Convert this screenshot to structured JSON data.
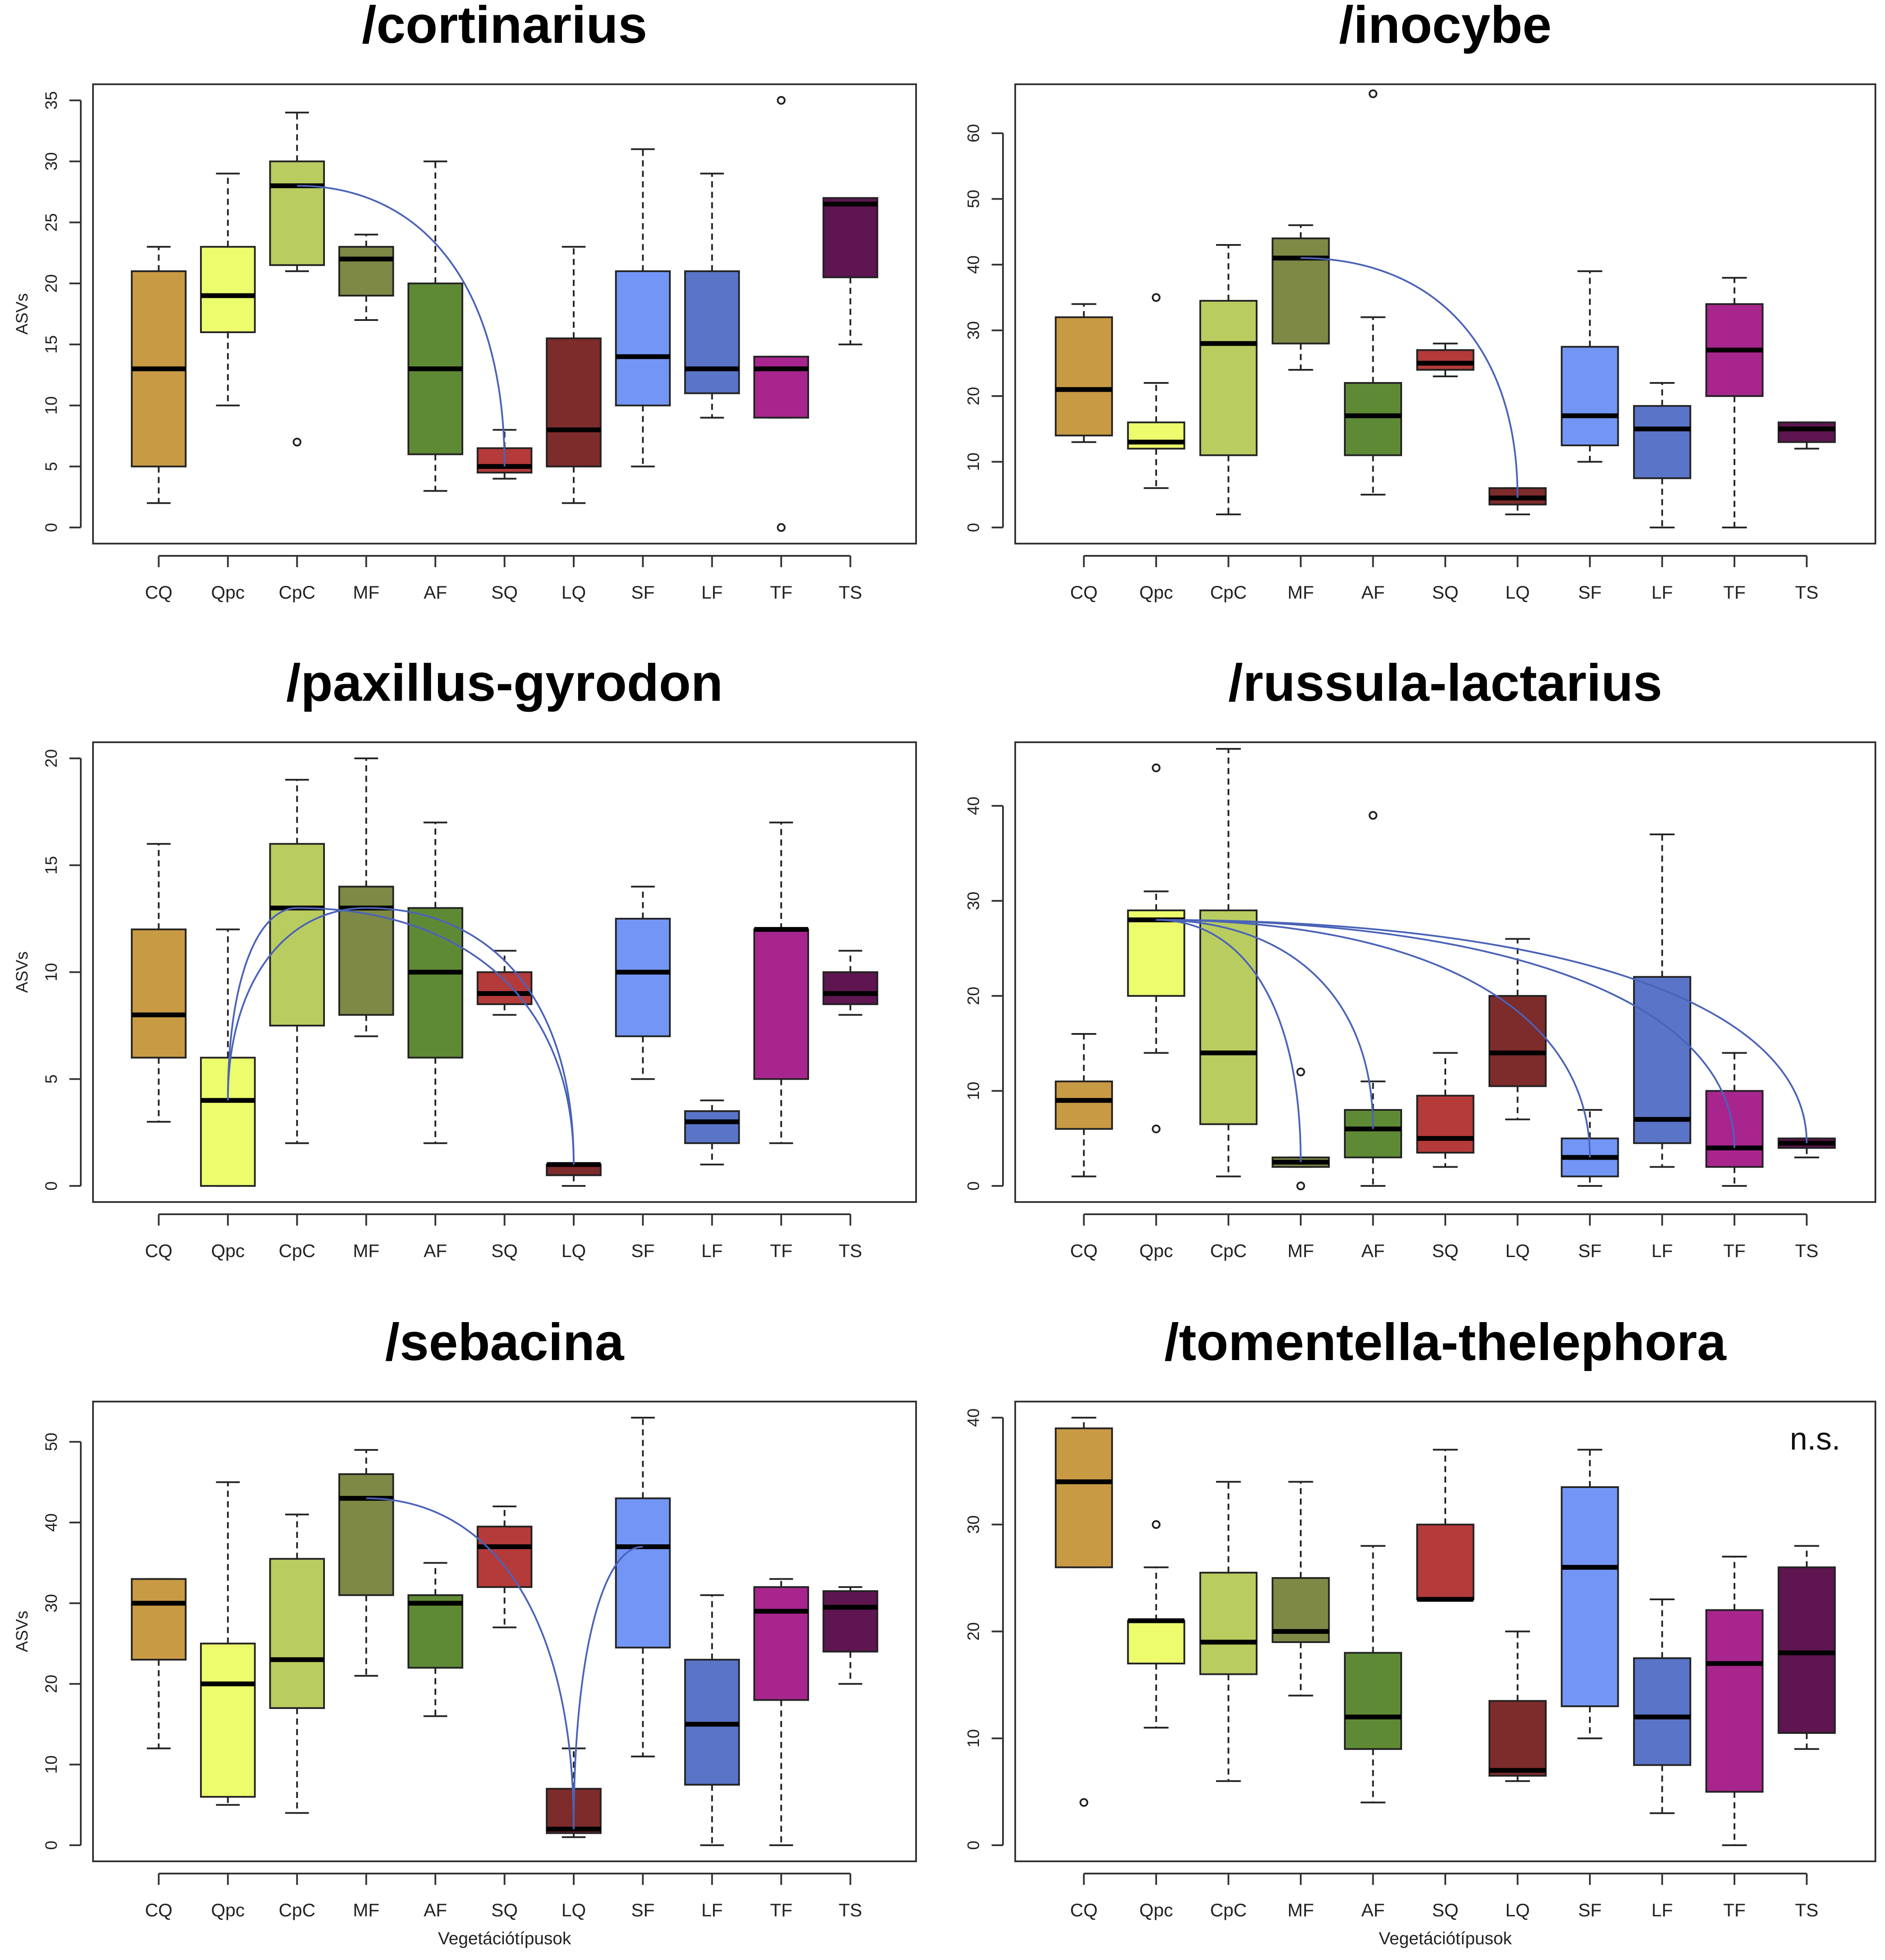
{
  "figure": {
    "categories": [
      "CQ",
      "Qpc",
      "CpC",
      "MF",
      "AF",
      "SQ",
      "LQ",
      "SF",
      "LF",
      "TF",
      "TS"
    ]
  },
  "colors": [
    "#c99a44",
    "#ecfc6c",
    "#b9cc5f",
    "#7e8945",
    "#5f8a35",
    "#b53a3a",
    "#7d2b2b",
    "#7395f5",
    "#5a74c8",
    "#a8258e",
    "#5e1550"
  ],
  "chart_data": [
    {
      "type": "box",
      "title": "/cortinarius",
      "ylabel": "ASVs",
      "xlabel": "",
      "ylim": [
        0,
        35
      ],
      "ticks": [
        0,
        5,
        10,
        15,
        20,
        25,
        30,
        35
      ],
      "boxes": [
        {
          "min": 2,
          "q1": 5,
          "median": 13,
          "q3": 21,
          "max": 23,
          "outliers": []
        },
        {
          "min": 10,
          "q1": 16,
          "median": 19,
          "q3": 23,
          "max": 29,
          "outliers": []
        },
        {
          "min": 21,
          "q1": 21.5,
          "median": 28,
          "q3": 30,
          "max": 34,
          "outliers": [
            7
          ]
        },
        {
          "min": 17,
          "q1": 19,
          "median": 22,
          "q3": 23,
          "max": 24,
          "outliers": []
        },
        {
          "min": 3,
          "q1": 6,
          "median": 13,
          "q3": 20,
          "max": 30,
          "outliers": []
        },
        {
          "min": 4,
          "q1": 4.5,
          "median": 5,
          "q3": 6.5,
          "max": 8,
          "outliers": []
        },
        {
          "min": 2,
          "q1": 5,
          "median": 8,
          "q3": 15.5,
          "max": 23,
          "outliers": []
        },
        {
          "min": 5,
          "q1": 10,
          "median": 14,
          "q3": 21,
          "max": 31,
          "outliers": []
        },
        {
          "min": 9,
          "q1": 11,
          "median": 13,
          "q3": 21,
          "max": 29,
          "outliers": []
        },
        {
          "min": 9,
          "q1": 9,
          "median": 13,
          "q3": 14,
          "max": 14,
          "outliers": [
            35,
            0
          ]
        },
        {
          "min": 15,
          "q1": 20.5,
          "median": 26.5,
          "q3": 27,
          "max": 27,
          "outliers": []
        }
      ],
      "significance_links": [
        {
          "from": "CpC",
          "to": "SQ"
        }
      ]
    },
    {
      "type": "box",
      "title": "/inocybe",
      "ylabel": "",
      "xlabel": "",
      "ylim": [
        0,
        65
      ],
      "ticks": [
        0,
        10,
        20,
        30,
        40,
        50,
        60
      ],
      "boxes": [
        {
          "min": 13,
          "q1": 14,
          "median": 21,
          "q3": 32,
          "max": 34,
          "outliers": []
        },
        {
          "min": 6,
          "q1": 12,
          "median": 13,
          "q3": 16,
          "max": 22,
          "outliers": [
            35
          ]
        },
        {
          "min": 2,
          "q1": 11,
          "median": 28,
          "q3": 34.5,
          "max": 43,
          "outliers": []
        },
        {
          "min": 24,
          "q1": 28,
          "median": 41,
          "q3": 44,
          "max": 46,
          "outliers": []
        },
        {
          "min": 5,
          "q1": 11,
          "median": 17,
          "q3": 22,
          "max": 32,
          "outliers": [
            66
          ]
        },
        {
          "min": 23,
          "q1": 24,
          "median": 25,
          "q3": 27,
          "max": 28,
          "outliers": []
        },
        {
          "min": 2,
          "q1": 3.5,
          "median": 4.5,
          "q3": 6,
          "max": 6,
          "outliers": []
        },
        {
          "min": 10,
          "q1": 12.5,
          "median": 17,
          "q3": 27.5,
          "max": 39,
          "outliers": []
        },
        {
          "min": 0,
          "q1": 7.5,
          "median": 15,
          "q3": 18.5,
          "max": 22,
          "outliers": []
        },
        {
          "min": 0,
          "q1": 20,
          "median": 27,
          "q3": 34,
          "max": 38,
          "outliers": []
        },
        {
          "min": 12,
          "q1": 13,
          "median": 15,
          "q3": 16,
          "max": 16,
          "outliers": []
        }
      ],
      "significance_links": [
        {
          "from": "MF",
          "to": "LQ"
        }
      ]
    },
    {
      "type": "box",
      "title": "/paxillus-gyrodon",
      "ylabel": "ASVs",
      "xlabel": "",
      "ylim": [
        0,
        20
      ],
      "ticks": [
        0,
        5,
        10,
        15,
        20
      ],
      "boxes": [
        {
          "min": 3,
          "q1": 6,
          "median": 8,
          "q3": 12,
          "max": 16,
          "outliers": []
        },
        {
          "min": 0,
          "q1": 0,
          "median": 4,
          "q3": 6,
          "max": 12,
          "outliers": []
        },
        {
          "min": 2,
          "q1": 7.5,
          "median": 13,
          "q3": 16,
          "max": 19,
          "outliers": []
        },
        {
          "min": 7,
          "q1": 8,
          "median": 13,
          "q3": 14,
          "max": 20,
          "outliers": []
        },
        {
          "min": 2,
          "q1": 6,
          "median": 10,
          "q3": 13,
          "max": 17,
          "outliers": []
        },
        {
          "min": 8,
          "q1": 8.5,
          "median": 9,
          "q3": 10,
          "max": 11,
          "outliers": []
        },
        {
          "min": 0,
          "q1": 0.5,
          "median": 1,
          "q3": 1,
          "max": 1,
          "outliers": []
        },
        {
          "min": 5,
          "q1": 7,
          "median": 10,
          "q3": 12.5,
          "max": 14,
          "outliers": []
        },
        {
          "min": 1,
          "q1": 2,
          "median": 3,
          "q3": 3.5,
          "max": 4,
          "outliers": []
        },
        {
          "min": 2,
          "q1": 5,
          "median": 12,
          "q3": 12,
          "max": 17,
          "outliers": []
        },
        {
          "min": 8,
          "q1": 8.5,
          "median": 9,
          "q3": 10,
          "max": 11,
          "outliers": []
        }
      ],
      "significance_links": [
        {
          "from": "Qpc",
          "to": "CpC"
        },
        {
          "from": "Qpc",
          "to": "MF"
        },
        {
          "from": "CpC",
          "to": "LQ"
        },
        {
          "from": "MF",
          "to": "LQ"
        }
      ]
    },
    {
      "type": "box",
      "title": "/russula-lactarius",
      "ylabel": "",
      "xlabel": "",
      "ylim": [
        0,
        45
      ],
      "ticks": [
        0,
        10,
        20,
        30,
        40
      ],
      "boxes": [
        {
          "min": 1,
          "q1": 6,
          "median": 9,
          "q3": 11,
          "max": 16,
          "outliers": []
        },
        {
          "min": 14,
          "q1": 20,
          "median": 28,
          "q3": 29,
          "max": 31,
          "outliers": [
            44,
            6
          ]
        },
        {
          "min": 1,
          "q1": 6.5,
          "median": 14,
          "q3": 29,
          "max": 46,
          "outliers": []
        },
        {
          "min": 2,
          "q1": 2,
          "median": 2.5,
          "q3": 3,
          "max": 3,
          "outliers": [
            12,
            0
          ]
        },
        {
          "min": 0,
          "q1": 3,
          "median": 6,
          "q3": 8,
          "max": 11,
          "outliers": [
            39
          ]
        },
        {
          "min": 2,
          "q1": 3.5,
          "median": 5,
          "q3": 9.5,
          "max": 14,
          "outliers": []
        },
        {
          "min": 7,
          "q1": 10.5,
          "median": 14,
          "q3": 20,
          "max": 26,
          "outliers": []
        },
        {
          "min": 0,
          "q1": 1,
          "median": 3,
          "q3": 5,
          "max": 8,
          "outliers": []
        },
        {
          "min": 2,
          "q1": 4.5,
          "median": 7,
          "q3": 22,
          "max": 37,
          "outliers": []
        },
        {
          "min": 0,
          "q1": 2,
          "median": 4,
          "q3": 10,
          "max": 14,
          "outliers": []
        },
        {
          "min": 3,
          "q1": 4,
          "median": 4.5,
          "q3": 5,
          "max": 5,
          "outliers": []
        }
      ],
      "significance_links": [
        {
          "from": "Qpc",
          "to": "MF"
        },
        {
          "from": "Qpc",
          "to": "AF"
        },
        {
          "from": "Qpc",
          "to": "SF"
        },
        {
          "from": "Qpc",
          "to": "TF"
        },
        {
          "from": "Qpc",
          "to": "TS"
        }
      ]
    },
    {
      "type": "box",
      "title": "/sebacina",
      "ylabel": "ASVs",
      "xlabel": "Vegetációtípusok",
      "ylim": [
        0,
        53
      ],
      "ticks": [
        0,
        10,
        20,
        30,
        40,
        50
      ],
      "boxes": [
        {
          "min": 12,
          "q1": 23,
          "median": 30,
          "q3": 33,
          "max": 33,
          "outliers": []
        },
        {
          "min": 5,
          "q1": 6,
          "median": 20,
          "q3": 25,
          "max": 45,
          "outliers": []
        },
        {
          "min": 4,
          "q1": 17,
          "median": 23,
          "q3": 35.5,
          "max": 41,
          "outliers": []
        },
        {
          "min": 21,
          "q1": 31,
          "median": 43,
          "q3": 46,
          "max": 49,
          "outliers": []
        },
        {
          "min": 16,
          "q1": 22,
          "median": 30,
          "q3": 31,
          "max": 35,
          "outliers": []
        },
        {
          "min": 27,
          "q1": 32,
          "median": 37,
          "q3": 39.5,
          "max": 42,
          "outliers": []
        },
        {
          "min": 1,
          "q1": 1.5,
          "median": 2,
          "q3": 7,
          "max": 12,
          "outliers": []
        },
        {
          "min": 11,
          "q1": 24.5,
          "median": 37,
          "q3": 43,
          "max": 53,
          "outliers": []
        },
        {
          "min": 0,
          "q1": 7.5,
          "median": 15,
          "q3": 23,
          "max": 31,
          "outliers": []
        },
        {
          "min": 0,
          "q1": 18,
          "median": 29,
          "q3": 32,
          "max": 33,
          "outliers": []
        },
        {
          "min": 20,
          "q1": 24,
          "median": 29.5,
          "q3": 31.5,
          "max": 32,
          "outliers": []
        }
      ],
      "significance_links": [
        {
          "from": "MF",
          "to": "LQ"
        },
        {
          "from": "LQ",
          "to": "SF"
        }
      ]
    },
    {
      "type": "box",
      "title": "/tomentella-thelephora",
      "ylabel": "",
      "xlabel": "Vegetációtípusok",
      "ylim": [
        0,
        40
      ],
      "ticks": [
        0,
        10,
        20,
        30,
        40
      ],
      "annotation": "n.s.",
      "boxes": [
        {
          "min": 26,
          "q1": 26,
          "median": 34,
          "q3": 39,
          "max": 40,
          "outliers": [
            4
          ]
        },
        {
          "min": 11,
          "q1": 17,
          "median": 21,
          "q3": 21,
          "max": 26,
          "outliers": [
            30
          ]
        },
        {
          "min": 6,
          "q1": 16,
          "median": 19,
          "q3": 25.5,
          "max": 34,
          "outliers": []
        },
        {
          "min": 14,
          "q1": 19,
          "median": 20,
          "q3": 25,
          "max": 34,
          "outliers": []
        },
        {
          "min": 4,
          "q1": 9,
          "median": 12,
          "q3": 18,
          "max": 28,
          "outliers": []
        },
        {
          "min": 23,
          "q1": 23,
          "median": 23,
          "q3": 30,
          "max": 37,
          "outliers": []
        },
        {
          "min": 6,
          "q1": 6.5,
          "median": 7,
          "q3": 13.5,
          "max": 20,
          "outliers": []
        },
        {
          "min": 10,
          "q1": 13,
          "median": 26,
          "q3": 33.5,
          "max": 37,
          "outliers": []
        },
        {
          "min": 3,
          "q1": 7.5,
          "median": 12,
          "q3": 17.5,
          "max": 23,
          "outliers": []
        },
        {
          "min": 0,
          "q1": 5,
          "median": 17,
          "q3": 22,
          "max": 27,
          "outliers": []
        },
        {
          "min": 9,
          "q1": 10.5,
          "median": 18,
          "q3": 26,
          "max": 28,
          "outliers": []
        }
      ],
      "significance_links": []
    }
  ]
}
